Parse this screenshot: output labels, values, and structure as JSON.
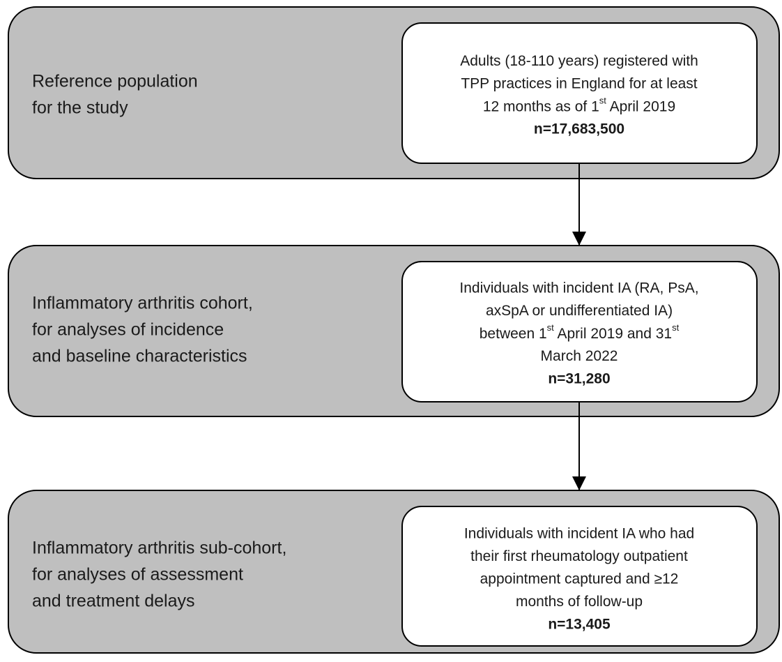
{
  "stages": [
    {
      "label_lines": [
        "Reference population",
        "for the study"
      ],
      "box": {
        "lines": [
          "Adults (18-110 years) registered with",
          "TPP practices in England for at least",
          [
            "12 months as of 1",
            {
              "sup": "st"
            },
            " April 2019"
          ]
        ],
        "count": "n=17,683,500"
      }
    },
    {
      "label_lines": [
        "Inflammatory arthritis cohort,",
        "for analyses of incidence",
        "and baseline characteristics"
      ],
      "box": {
        "lines": [
          "Individuals with incident IA (RA, PsA,",
          "axSpA or undifferentiated IA)",
          [
            "between 1",
            {
              "sup": "st"
            },
            " April 2019 and 31",
            {
              "sup": "st"
            }
          ],
          "March 2022"
        ],
        "count": "n=31,280"
      }
    },
    {
      "label_lines": [
        "Inflammatory arthritis sub-cohort,",
        "for analyses of assessment",
        "and treatment delays"
      ],
      "box": {
        "lines": [
          "Individuals with incident IA who had",
          "their first rheumatology outpatient",
          "appointment captured and ≥12",
          "months of follow-up"
        ],
        "count": "n=13,405"
      }
    }
  ]
}
